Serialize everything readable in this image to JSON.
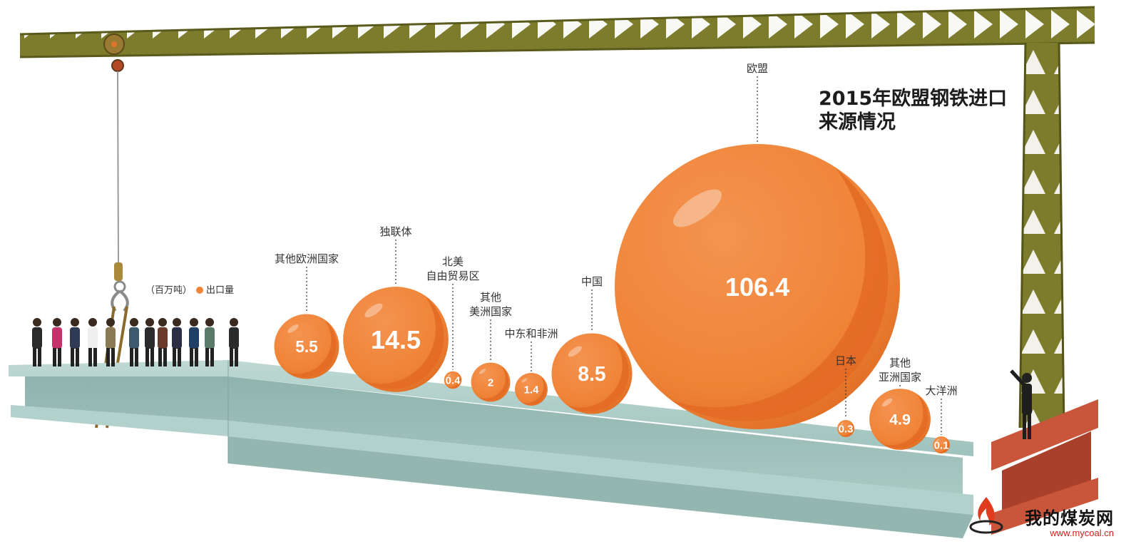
{
  "title_line1": "2015年欧盟钢铁进口",
  "title_line2": "来源情况",
  "unit_label": "（百万吨）",
  "legend_label": "出口量",
  "watermark": {
    "name": "我的煤炭网",
    "url": "www.mycoal.cn"
  },
  "colors": {
    "bubble": "#ef8437",
    "bubble_shade": "#e36a24",
    "steel": "#a7c8c3",
    "crane": "#7c7c2c"
  },
  "chart_data": {
    "type": "bubble",
    "title": "2015年欧盟钢铁进口来源情况",
    "unit": "百万吨",
    "legend": [
      "出口量"
    ],
    "points": [
      {
        "label": "其他欧洲国家",
        "value": 5.5
      },
      {
        "label": "独联体",
        "value": 14.5
      },
      {
        "label": "北美自由贸易区",
        "value": 0.4
      },
      {
        "label": "其他美洲国家",
        "value": 2
      },
      {
        "label": "中东和非洲",
        "value": 1.4
      },
      {
        "label": "中国",
        "value": 8.5
      },
      {
        "label": "欧盟",
        "value": 106.4
      },
      {
        "label": "日本",
        "value": 0.3
      },
      {
        "label": "其他亚洲国家",
        "value": 4.9
      },
      {
        "label": "大洋洲",
        "value": 0.1
      }
    ],
    "value_labels": [
      "5.5",
      "14.5",
      "0.4",
      "2",
      "1.4",
      "8.5",
      "106.4",
      "0.3",
      "4.9",
      "0.1"
    ],
    "category_labels": [
      [
        "其他欧洲国家"
      ],
      [
        "独联体"
      ],
      [
        "北美",
        "自由贸易区"
      ],
      [
        "其他",
        "美洲国家"
      ],
      [
        "中东和非洲"
      ],
      [
        "中国"
      ],
      [
        "欧盟"
      ],
      [
        "日本"
      ],
      [
        "其他",
        "亚洲国家"
      ],
      [
        "大洋洲"
      ]
    ]
  }
}
